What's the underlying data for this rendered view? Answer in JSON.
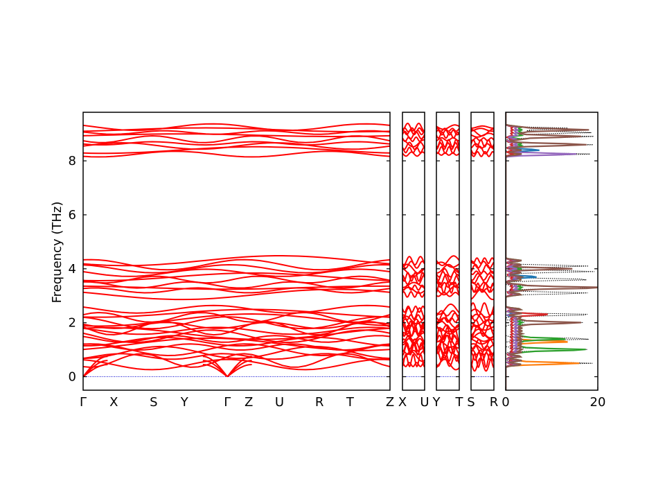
{
  "chart_data": {
    "type": "line",
    "title": "",
    "ylabel": "Frequency (THz)",
    "ylim": [
      -0.5,
      9.8
    ],
    "yticks": [
      0,
      2,
      4,
      6,
      8
    ],
    "band_structure": {
      "segments": [
        {
          "labels": [
            "Γ",
            "X",
            "S",
            "Y",
            "Γ",
            "Z",
            "U",
            "R",
            "T",
            "Z"
          ],
          "positions": [
            0,
            0.1,
            0.23,
            0.33,
            0.47,
            0.54,
            0.64,
            0.77,
            0.87,
            1.0
          ]
        },
        {
          "labels": [
            "X",
            "U"
          ],
          "positions": [
            0,
            1
          ]
        },
        {
          "labels": [
            "Y",
            "T"
          ],
          "positions": [
            0,
            1
          ]
        },
        {
          "labels": [
            "S",
            "R"
          ],
          "positions": [
            0,
            1
          ]
        }
      ],
      "line_color": "#ff0000",
      "zero_line_color": "#0000cc",
      "optical_band_frequencies": [
        8.25,
        8.4,
        8.55,
        8.65,
        8.8,
        8.95,
        9.05,
        9.15,
        9.25
      ],
      "middle_band_frequencies": [
        3.05,
        3.2,
        3.3,
        3.4,
        3.6,
        3.7,
        3.85,
        4.0,
        4.15,
        4.3
      ],
      "low_band_frequencies": [
        0.45,
        0.6,
        0.75,
        0.9,
        1.0,
        1.1,
        1.2,
        1.3,
        1.4,
        1.5,
        1.6,
        1.7,
        1.8,
        1.9,
        2.0,
        2.1,
        2.2,
        2.35,
        2.5
      ]
    },
    "dos": {
      "xlim": [
        0,
        20
      ],
      "xticks": [
        0,
        20
      ],
      "total_color": "#000000",
      "total_style": "dotted",
      "partial_colors": [
        "#1f77b4",
        "#ff7f0e",
        "#2ca02c",
        "#d62728",
        "#9467bd",
        "#8c564b"
      ],
      "total_peaks": [
        {
          "freq": 8.25,
          "value": 18.5
        },
        {
          "freq": 8.6,
          "value": 19.0
        },
        {
          "freq": 8.9,
          "value": 19.5
        },
        {
          "freq": 9.05,
          "value": 18.8
        },
        {
          "freq": 9.2,
          "value": 15.0
        },
        {
          "freq": 0.5,
          "value": 19.0
        },
        {
          "freq": 1.0,
          "value": 18.5
        },
        {
          "freq": 1.4,
          "value": 19.0
        },
        {
          "freq": 2.0,
          "value": 17.0
        },
        {
          "freq": 2.3,
          "value": 19.5
        },
        {
          "freq": 3.1,
          "value": 18.0
        },
        {
          "freq": 3.3,
          "value": 19.5
        },
        {
          "freq": 3.6,
          "value": 19.0
        },
        {
          "freq": 3.9,
          "value": 19.5
        },
        {
          "freq": 4.1,
          "value": 18.0
        }
      ],
      "partial_peaks": [
        {
          "freq": 0.5,
          "value": 15.0,
          "series": 1
        },
        {
          "freq": 1.0,
          "value": 14.5,
          "series": 2
        },
        {
          "freq": 1.3,
          "value": 12.0,
          "series": 1
        },
        {
          "freq": 1.4,
          "value": 10.0,
          "series": 2
        },
        {
          "freq": 2.0,
          "value": 13.0,
          "series": 5
        },
        {
          "freq": 2.3,
          "value": 9.0,
          "series": 3
        },
        {
          "freq": 3.3,
          "value": 18.0,
          "series": 5
        },
        {
          "freq": 3.7,
          "value": 5.5,
          "series": 0
        },
        {
          "freq": 4.0,
          "value": 11.0,
          "series": 5
        },
        {
          "freq": 8.25,
          "value": 13.0,
          "series": 4
        },
        {
          "freq": 8.6,
          "value": 15.0,
          "series": 5
        },
        {
          "freq": 8.9,
          "value": 15.0,
          "series": 5
        },
        {
          "freq": 9.15,
          "value": 14.5,
          "series": 5
        },
        {
          "freq": 8.4,
          "value": 6.0,
          "series": 0
        }
      ]
    }
  }
}
